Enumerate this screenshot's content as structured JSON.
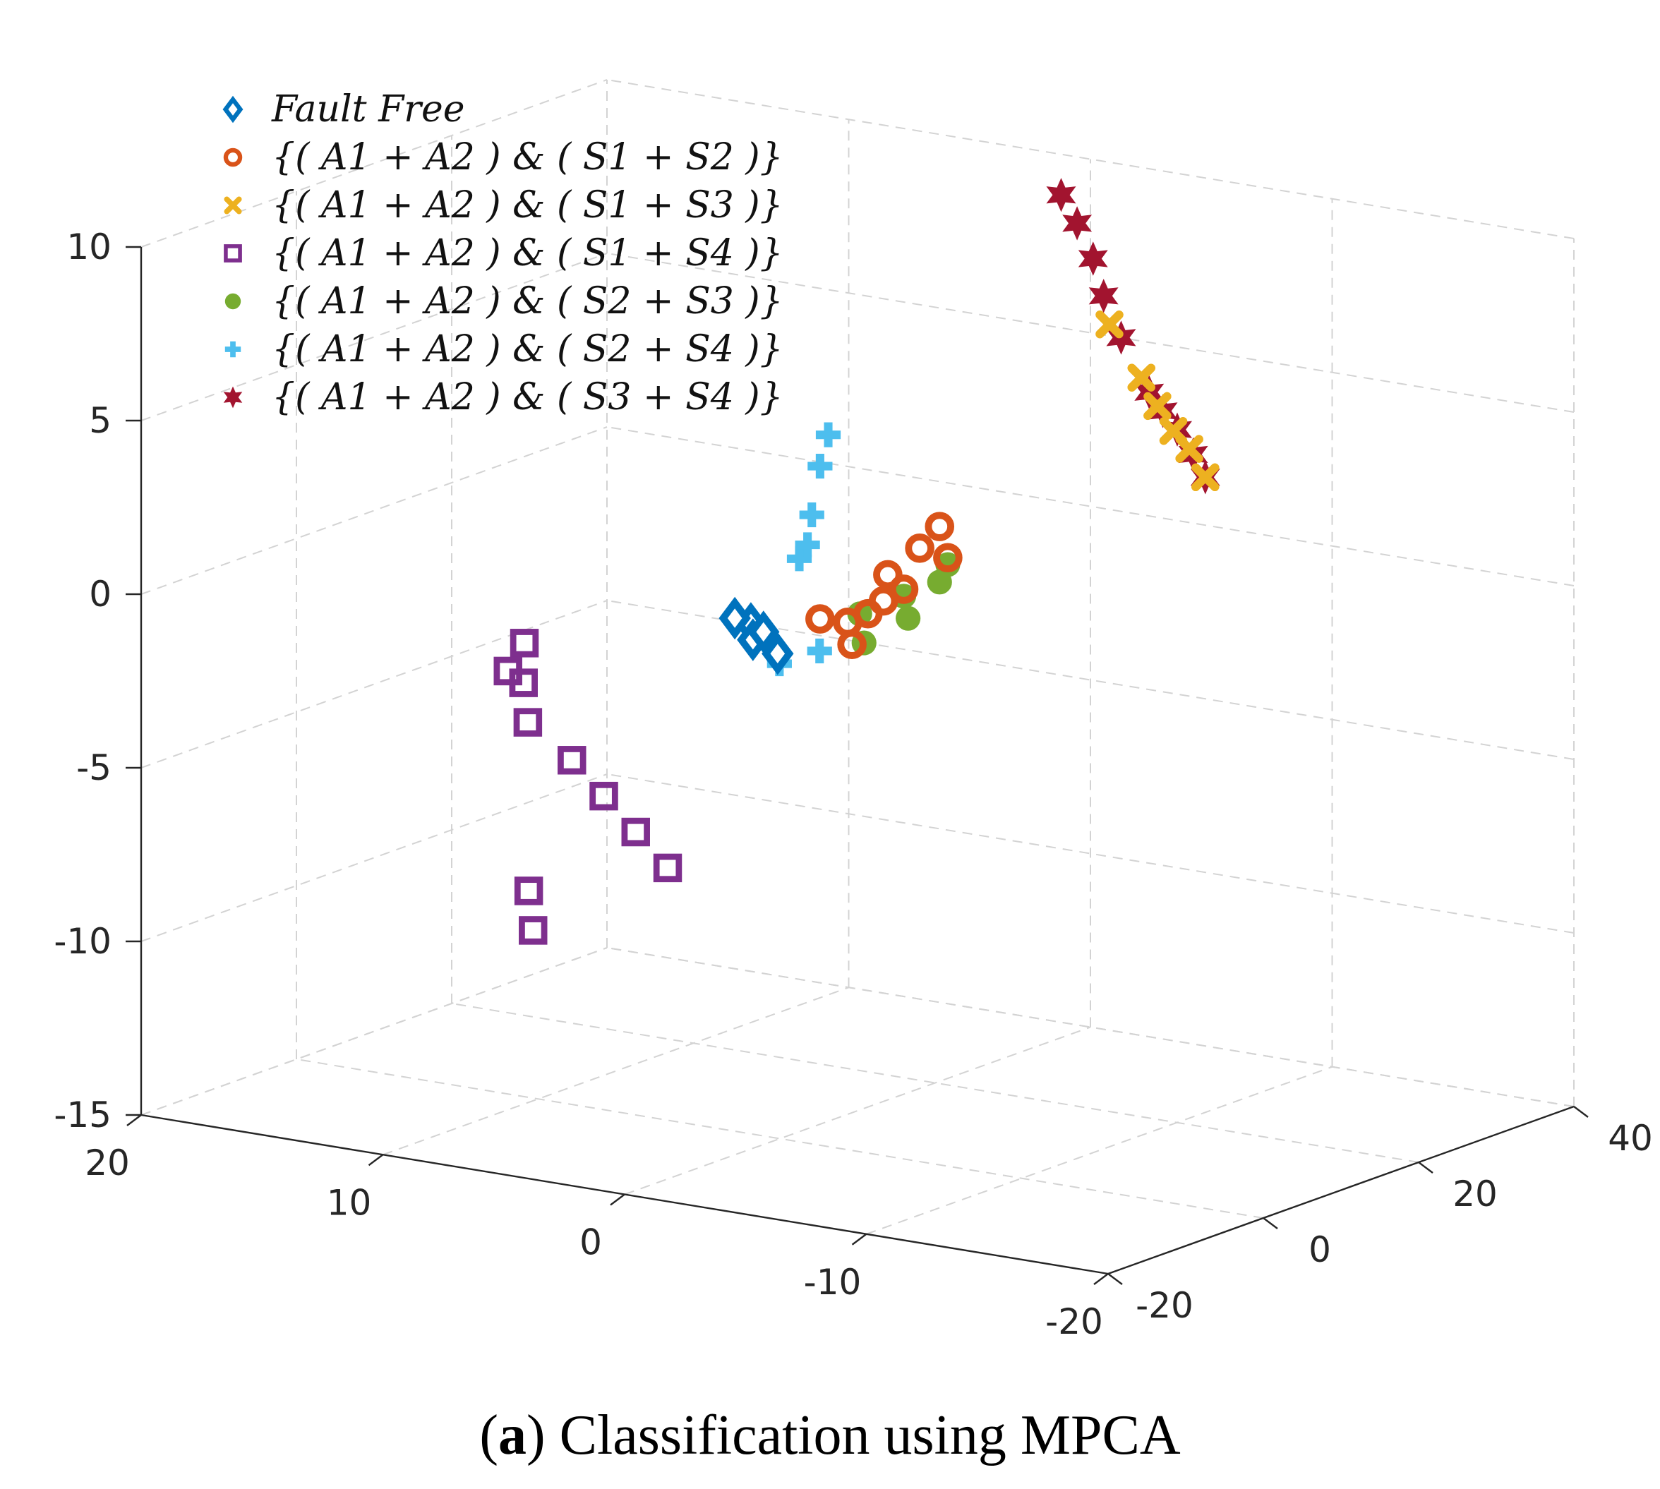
{
  "chart_data": {
    "type": "scatter",
    "dimensions": 3,
    "title": "",
    "xlabel": "",
    "ylabel": "",
    "zlabel": "",
    "grid": true,
    "legend_position": "top-left",
    "x_axis": {
      "range": [
        -20,
        20
      ],
      "ticks": [
        20,
        10,
        0,
        -10,
        -20
      ],
      "tick_labels": [
        "20",
        "10",
        "0",
        "-10",
        "-20"
      ]
    },
    "y_axis": {
      "range": [
        -20,
        40
      ],
      "ticks": [
        -20,
        0,
        20,
        40
      ],
      "tick_labels": [
        "-20",
        "0",
        "20",
        "40"
      ]
    },
    "z_axis": {
      "range": [
        -15,
        10
      ],
      "ticks": [
        -15,
        -10,
        -5,
        0,
        5,
        10
      ],
      "tick_labels": [
        "-15",
        "-10",
        "-5",
        "0",
        "5",
        "10"
      ]
    },
    "series": [
      {
        "name": "Fault Free",
        "label": "Fault Free",
        "marker": "diamond",
        "color": "#0072BD",
        "points": [
          [
            1.2,
            0.0,
            -0.3
          ],
          [
            1.5,
            1.2,
            -0.9
          ],
          [
            0.8,
            2.2,
            -1.3
          ],
          [
            1.8,
            -0.2,
            -0.2
          ],
          [
            1.0,
            1.0,
            -0.6
          ]
        ]
      },
      {
        "name": "{(A1+A2)&(S1+S2)}",
        "label": "{( A1 + A2 ) & ( S1 + S2 )}",
        "marker": "circle",
        "color": "#D95319",
        "points": [
          [
            -1.5,
            0.5,
            0.1
          ],
          [
            -2.5,
            1.5,
            -0.6
          ],
          [
            -3.5,
            3.0,
            1.4
          ],
          [
            -4.5,
            4.0,
            2.2
          ],
          [
            -5.0,
            5.0,
            2.8
          ],
          [
            -3.0,
            2.0,
            0.3
          ],
          [
            -4.0,
            3.5,
            1.0
          ],
          [
            -2.0,
            2.5,
            -0.1
          ],
          [
            -5.5,
            4.5,
            2.0
          ],
          [
            -3.8,
            1.5,
            0.8
          ]
        ]
      },
      {
        "name": "{(A1+A2)&(S1+S3)}",
        "label": "{( A1 + A2 ) & ( S1 + S3 )}",
        "marker": "x",
        "color": "#EDB120",
        "points": [
          [
            -4,
            30,
            6.5
          ],
          [
            -5,
            31,
            5.0
          ],
          [
            -6,
            32,
            3.5
          ],
          [
            -7,
            33,
            2.2
          ],
          [
            -6.5,
            32.5,
            3.0
          ],
          [
            -5.5,
            31.5,
            4.2
          ]
        ]
      },
      {
        "name": "{(A1+A2)&(S1+S4)}",
        "label": "{( A1 + A2 ) & ( S1 + S4 )}",
        "marker": "square",
        "color": "#7E2F8E",
        "points": [
          [
            8,
            -8,
            -1.0
          ],
          [
            9,
            -7,
            -2.0
          ],
          [
            8.5,
            -6,
            -3.5
          ],
          [
            7,
            -5,
            -4.5
          ],
          [
            6,
            -4,
            -5.5
          ],
          [
            5,
            -3,
            -6.5
          ],
          [
            4,
            -2,
            -7.5
          ],
          [
            7,
            -10,
            -9.0
          ],
          [
            7.5,
            -9,
            -8.0
          ],
          [
            9,
            -5,
            -2.5
          ]
        ]
      },
      {
        "name": "{(A1+A2)&(S2+S3)}",
        "label": "{( A1 + A2 ) & ( S2 + S3 )}",
        "marker": "filled-circle",
        "color": "#77AC30",
        "points": [
          [
            -2.5,
            2.5,
            0.2
          ],
          [
            -4.0,
            3.5,
            0.8
          ],
          [
            -5.5,
            4.5,
            1.8
          ],
          [
            -3.0,
            1.5,
            -0.5
          ],
          [
            -4.5,
            2.5,
            0.3
          ],
          [
            -5.0,
            5.0,
            1.2
          ]
        ]
      },
      {
        "name": "{(A1+A2)&(S2+S4)}",
        "label": "{( A1 + A2 ) & ( S2 + S4 )}",
        "marker": "plus",
        "color": "#4DBEEE",
        "points": [
          [
            -1,
            1.0,
            3.0
          ],
          [
            -1.5,
            0.5,
            4.5
          ],
          [
            -2,
            0.0,
            5.5
          ],
          [
            0,
            2.5,
            1.5
          ],
          [
            0.5,
            1.5,
            -1.5
          ],
          [
            -1,
            2.0,
            -1.0
          ],
          [
            -0.5,
            2.0,
            2.0
          ]
        ]
      },
      {
        "name": "{(A1+A2)&(S3+S4)}",
        "label": "{( A1 + A2 ) & ( S3 + S4 )}",
        "marker": "hexagram",
        "color": "#A2142F",
        "points": [
          [
            -2,
            30,
            10.0
          ],
          [
            -2.5,
            30.5,
            9.2
          ],
          [
            -3,
            31,
            8.2
          ],
          [
            -4,
            31.5,
            6.0
          ],
          [
            -5,
            32,
            4.5
          ],
          [
            -6,
            32.5,
            3.5
          ],
          [
            -7,
            33,
            2.2
          ],
          [
            -3.5,
            30.8,
            7.2
          ],
          [
            -5.5,
            32.2,
            4.0
          ],
          [
            -6.5,
            33,
            2.8
          ]
        ]
      }
    ]
  },
  "caption": {
    "prefix": "(",
    "letter": "a",
    "text": ") Classification using MPCA"
  }
}
